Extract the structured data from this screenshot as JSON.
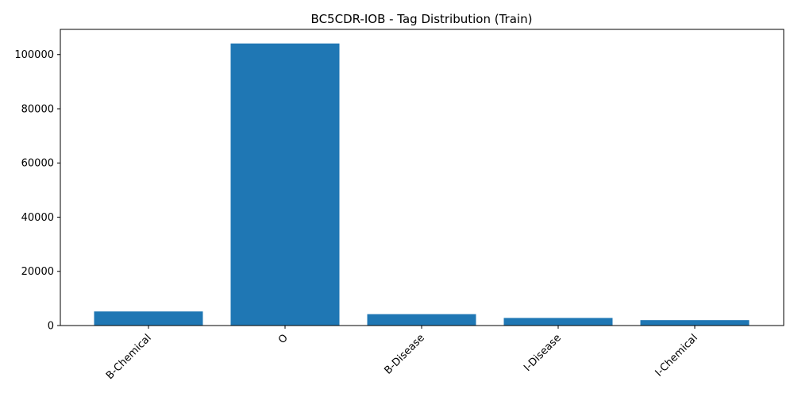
{
  "chart_data": {
    "type": "bar",
    "title": "BC5CDR-IOB - Tag Distribution (Train)",
    "xlabel": "",
    "ylabel": "",
    "categories": [
      "B-Chemical",
      "O",
      "B-Disease",
      "I-Disease",
      "I-Chemical"
    ],
    "values": [
      5200,
      104100,
      4200,
      2800,
      2000
    ],
    "yticks": [
      0,
      20000,
      40000,
      60000,
      80000,
      100000
    ],
    "ylim": [
      0,
      109300
    ],
    "bar_color": "#1f77b4",
    "grid": false,
    "legend": "none",
    "xtick_rotation": 45
  }
}
